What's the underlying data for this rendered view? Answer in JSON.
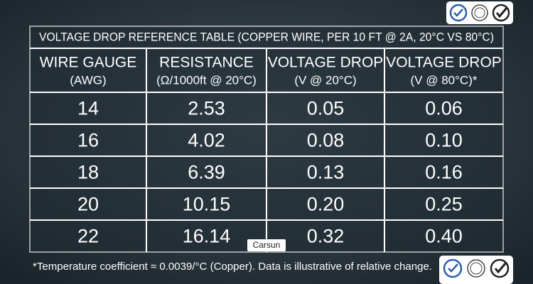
{
  "title": "VOLTAGE DROP REFERENCE TABLE (COPPER WIRE, PER 10 FT @ 2A, 20°C VS 80°C)",
  "table": {
    "headers": [
      [
        "WIRE GAUGE",
        "(AWG)"
      ],
      [
        "RESISTANCE",
        "(Ω/1000ft @ 20°C)"
      ],
      [
        "VOLTAGE DROP",
        "(V @ 20°C)"
      ],
      [
        "VOLTAGE DROP",
        "(V @ 80°C)*"
      ]
    ],
    "rows": [
      [
        "14",
        "2.53",
        "0.05",
        "0.06"
      ],
      [
        "16",
        "4.02",
        "0.08",
        "0.10"
      ],
      [
        "18",
        "6.39",
        "0.13",
        "0.16"
      ],
      [
        "20",
        "10.15",
        "0.20",
        "0.25"
      ],
      [
        "22",
        "16.14",
        "0.32",
        "0.40"
      ]
    ]
  },
  "watermark": "Carsun",
  "footnote": "*Temperature coefficient ≈ 0.0039/°C (Copper). Data is illustrative of relative change."
}
